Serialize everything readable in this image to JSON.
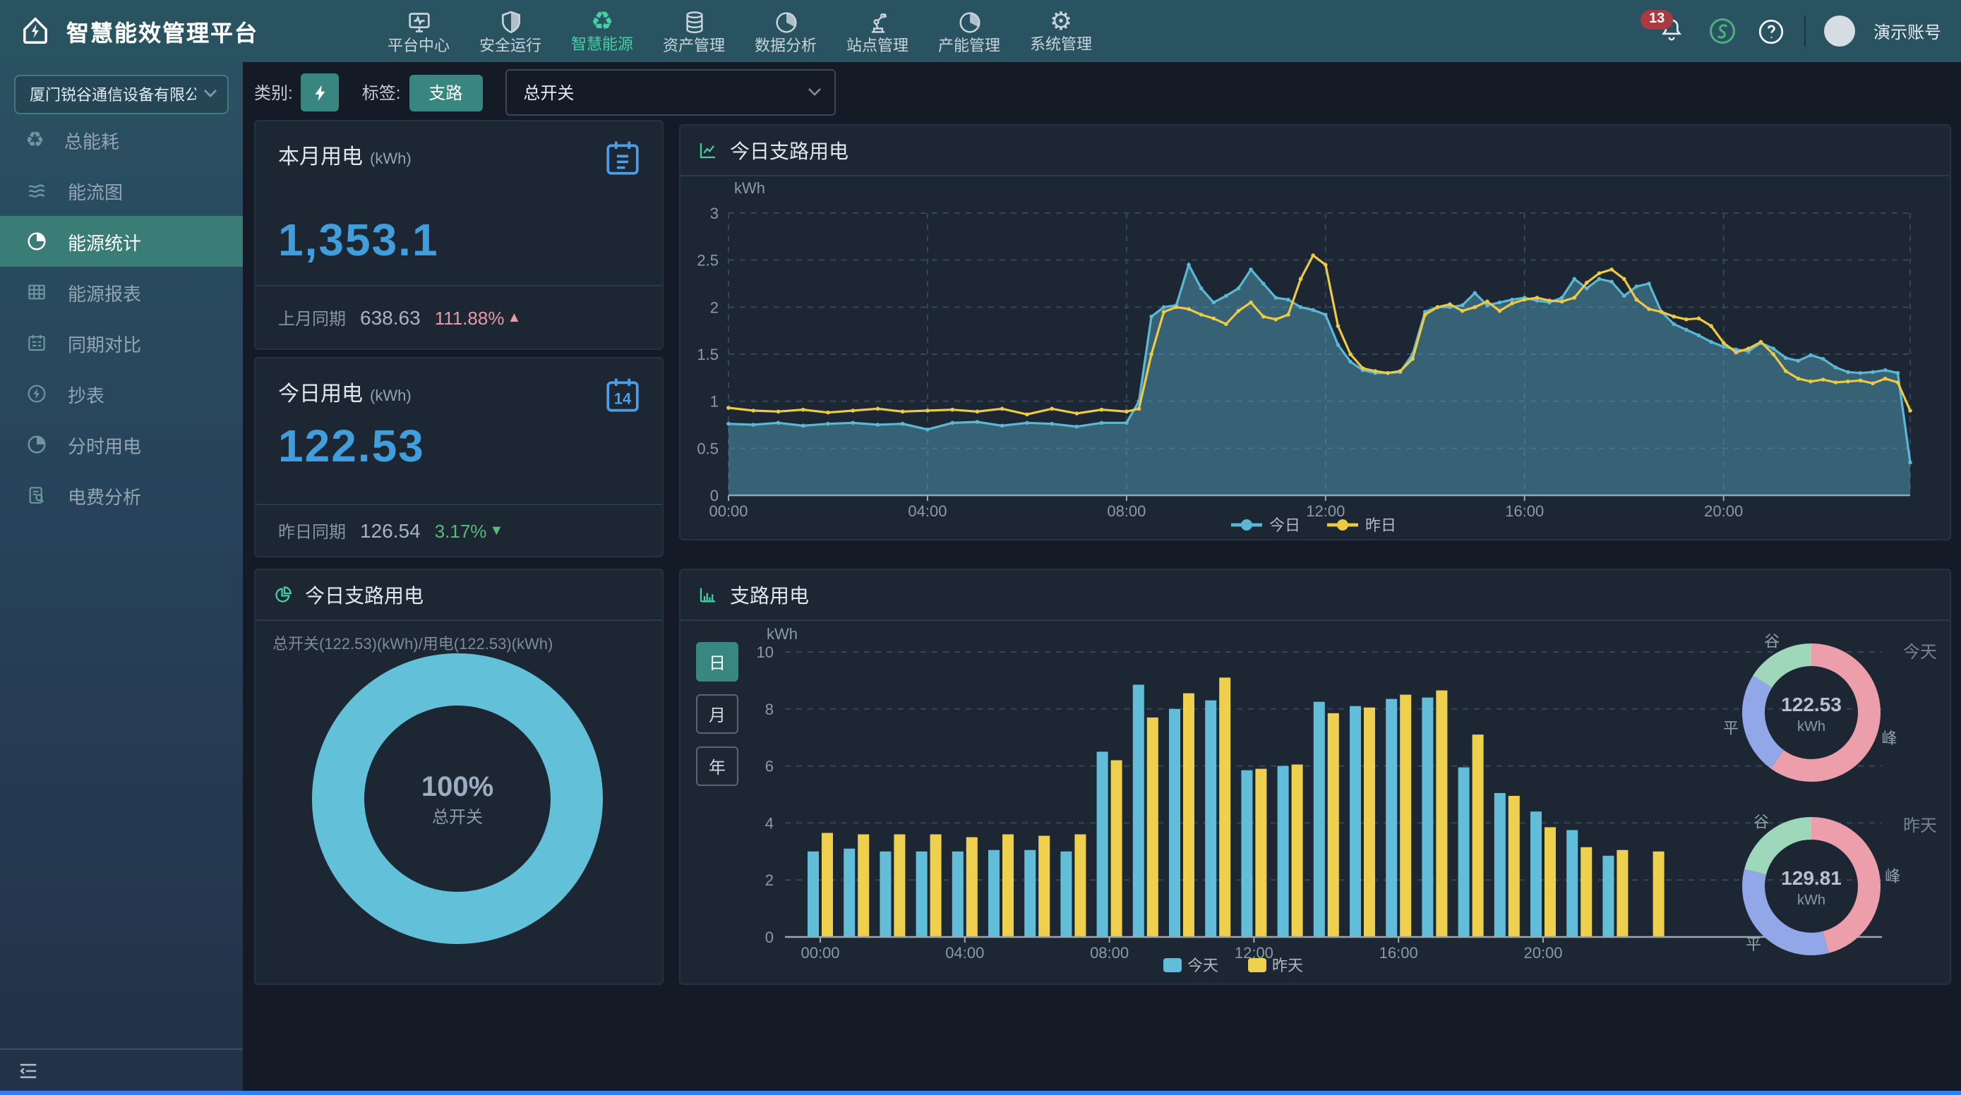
{
  "app": {
    "title": "智慧能效管理平台"
  },
  "topnav": {
    "items": [
      {
        "label": "平台中心",
        "icon": "monitor-icon",
        "active": false
      },
      {
        "label": "安全运行",
        "icon": "shield-icon",
        "active": false
      },
      {
        "label": "智慧能源",
        "icon": "recycle-icon",
        "active": true
      },
      {
        "label": "资产管理",
        "icon": "database-icon",
        "active": false
      },
      {
        "label": "数据分析",
        "icon": "pie-chart-icon",
        "active": false
      },
      {
        "label": "站点管理",
        "icon": "robot-arm-icon",
        "active": false
      },
      {
        "label": "产能管理",
        "icon": "pie-chart-icon",
        "active": false
      },
      {
        "label": "系统管理",
        "icon": "gear-icon",
        "active": false
      }
    ]
  },
  "topbar": {
    "notification_count": "13",
    "account_name": "演示账号"
  },
  "icons": {
    "gear_glyph": "⚙",
    "recycle_glyph": "♻",
    "trend_up": "▲",
    "trend_down": "▼"
  },
  "sidebar": {
    "company": "厦门锐谷通信设备有限公司",
    "items": [
      {
        "label": "总能耗",
        "icon": "recycle-icon",
        "active": false
      },
      {
        "label": "能流图",
        "icon": "flow-icon",
        "active": false
      },
      {
        "label": "能源统计",
        "icon": "pie-clock-icon",
        "active": true
      },
      {
        "label": "能源报表",
        "icon": "table-icon",
        "active": false
      },
      {
        "label": "同期对比",
        "icon": "calendar-icon",
        "active": false
      },
      {
        "label": "抄表",
        "icon": "bolt-circle-icon",
        "active": false
      },
      {
        "label": "分时用电",
        "icon": "pie-clock-icon",
        "active": false
      },
      {
        "label": "电费分析",
        "icon": "doc-search-icon",
        "active": false
      }
    ]
  },
  "filters": {
    "category_label": "类别:",
    "tag_label": "标签:",
    "tag_value": "支路",
    "switch_select": "总开关"
  },
  "stat_cards": {
    "month": {
      "title": "本月用电",
      "unit": "(kWh)",
      "value": "1,353.1",
      "compare_label": "上月同期",
      "compare_value": "638.63",
      "change_percent": "111.88%",
      "trend": "up"
    },
    "today": {
      "title": "今日用电",
      "unit": "(kWh)",
      "value": "122.53",
      "compare_label": "昨日同期",
      "compare_value": "126.54",
      "change_percent": "3.17%",
      "trend": "down",
      "calendar_day": "14"
    }
  },
  "panels": {
    "line": {
      "title": "今日支路用电"
    },
    "donut": {
      "title": "今日支路用电",
      "subtitle": "总开关(122.53)(kWh)/用电(122.53)(kWh)"
    },
    "bar": {
      "title": "支路用电",
      "range_buttons": [
        "日",
        "月",
        "年"
      ],
      "active_range": "日"
    }
  },
  "colors": {
    "accent": "#43d0a2",
    "today_line": "#5ab8d4",
    "yesterday_line": "#edc944",
    "bar_today": "#62bed8",
    "bar_yesterday": "#eed04e",
    "peak": "#ec9fab",
    "flat": "#92a7e8",
    "valley": "#9ed7ba",
    "donut": "#62c1d8",
    "value_blue": "#3f9edb"
  },
  "chart_data": [
    {
      "id": "today-branch-line",
      "type": "area-line",
      "title": "今日支路用电",
      "ylabel": "kWh",
      "ylim": [
        0,
        3
      ],
      "yticks": [
        0,
        0.5,
        1,
        1.5,
        2,
        2.5,
        3
      ],
      "xticks": [
        "00:00",
        "04:00",
        "08:00",
        "12:00",
        "16:00",
        "20:00"
      ],
      "xtick_hours": [
        0,
        4,
        8,
        12,
        16,
        20
      ],
      "hours_range": [
        0,
        23.75
      ],
      "grid": "dashed",
      "legend": [
        "今日",
        "昨日"
      ],
      "legend_position": "bottom",
      "hours": [
        0,
        0.5,
        1,
        1.5,
        2,
        2.5,
        3,
        3.5,
        4,
        4.5,
        5,
        5.5,
        6,
        6.5,
        7,
        7.5,
        8,
        8.25,
        8.5,
        8.75,
        9,
        9.25,
        9.5,
        9.75,
        10,
        10.25,
        10.5,
        10.75,
        11,
        11.25,
        11.5,
        11.75,
        12,
        12.25,
        12.5,
        12.75,
        13,
        13.25,
        13.5,
        13.75,
        14,
        14.25,
        14.5,
        14.75,
        15,
        15.25,
        15.5,
        15.75,
        16,
        16.25,
        16.5,
        16.75,
        17,
        17.25,
        17.5,
        17.75,
        18,
        18.25,
        18.5,
        18.75,
        19,
        19.25,
        19.5,
        19.75,
        20,
        20.25,
        20.5,
        20.75,
        21,
        21.25,
        21.5,
        21.75,
        22,
        22.25,
        22.5,
        22.75,
        23,
        23.25,
        23.5,
        23.75
      ],
      "series": [
        {
          "name": "今日",
          "color": "#5ab8d4",
          "area": true,
          "area_color": "rgba(93,178,205,0.42)",
          "values": [
            0.76,
            0.75,
            0.77,
            0.74,
            0.76,
            0.77,
            0.75,
            0.76,
            0.7,
            0.77,
            0.78,
            0.74,
            0.77,
            0.76,
            0.73,
            0.77,
            0.77,
            1.0,
            1.9,
            2.0,
            2.02,
            2.45,
            2.2,
            2.05,
            2.12,
            2.2,
            2.4,
            2.25,
            2.1,
            2.08,
            2.0,
            1.97,
            1.92,
            1.6,
            1.42,
            1.33,
            1.3,
            1.3,
            1.31,
            1.5,
            1.95,
            2.0,
            2.0,
            2.02,
            2.15,
            2.02,
            2.05,
            2.08,
            2.1,
            2.07,
            2.05,
            2.1,
            2.3,
            2.2,
            2.3,
            2.27,
            2.12,
            2.22,
            2.25,
            1.95,
            1.82,
            1.76,
            1.7,
            1.63,
            1.58,
            1.55,
            1.53,
            1.62,
            1.56,
            1.46,
            1.43,
            1.49,
            1.45,
            1.36,
            1.31,
            1.3,
            1.31,
            1.33,
            1.3,
            0.35
          ]
        },
        {
          "name": "昨日",
          "color": "#edc944",
          "area": false,
          "values": [
            0.93,
            0.9,
            0.89,
            0.91,
            0.88,
            0.9,
            0.92,
            0.89,
            0.9,
            0.91,
            0.89,
            0.92,
            0.86,
            0.92,
            0.87,
            0.91,
            0.89,
            0.92,
            1.5,
            1.95,
            2.0,
            1.98,
            1.92,
            1.88,
            1.82,
            1.96,
            2.05,
            1.9,
            1.87,
            1.92,
            2.3,
            2.55,
            2.45,
            1.8,
            1.5,
            1.35,
            1.32,
            1.3,
            1.32,
            1.45,
            1.92,
            2.0,
            2.03,
            1.96,
            2.0,
            2.06,
            1.96,
            2.04,
            2.08,
            2.1,
            2.07,
            2.06,
            2.1,
            2.26,
            2.36,
            2.4,
            2.3,
            2.08,
            1.98,
            1.95,
            1.9,
            1.87,
            1.88,
            1.8,
            1.62,
            1.52,
            1.56,
            1.63,
            1.5,
            1.32,
            1.24,
            1.21,
            1.23,
            1.2,
            1.21,
            1.22,
            1.19,
            1.24,
            1.2,
            0.9
          ]
        }
      ]
    },
    {
      "id": "total-switch-donut",
      "type": "donut",
      "title": "今日支路用电",
      "subtitle": "总开关(122.53)(kWh)/用电(122.53)(kWh)",
      "center_value": "100%",
      "center_label": "总开关",
      "color": "#62c1d8",
      "value_fraction": 1
    },
    {
      "id": "branch-bars",
      "type": "bar",
      "title": "支路用电",
      "ylabel": "kWh",
      "ylim": [
        0,
        10
      ],
      "yticks": [
        0,
        2,
        4,
        6,
        8,
        10
      ],
      "categories": [
        "00:00",
        "01:00",
        "02:00",
        "03:00",
        "04:00",
        "05:00",
        "06:00",
        "07:00",
        "08:00",
        "09:00",
        "10:00",
        "11:00",
        "12:00",
        "13:00",
        "14:00",
        "15:00",
        "16:00",
        "17:00",
        "18:00",
        "19:00",
        "20:00",
        "21:00",
        "22:00",
        "23:00"
      ],
      "xtick_labels": [
        "00:00",
        "04:00",
        "08:00",
        "12:00",
        "16:00",
        "20:00"
      ],
      "xtick_index": [
        0,
        4,
        8,
        12,
        16,
        20
      ],
      "grid": "dashed",
      "legend": [
        "今天",
        "昨天"
      ],
      "legend_position": "bottom",
      "series": [
        {
          "name": "今天",
          "color": "#62bed8",
          "values": [
            3.0,
            3.1,
            3.0,
            3.0,
            3.0,
            3.05,
            3.05,
            3.0,
            6.5,
            8.85,
            8.0,
            8.3,
            5.85,
            6.0,
            8.25,
            8.1,
            8.35,
            8.4,
            5.95,
            5.05,
            4.4,
            3.75,
            2.85,
            null
          ]
        },
        {
          "name": "昨天",
          "color": "#eed04e",
          "values": [
            3.65,
            3.6,
            3.6,
            3.6,
            3.5,
            3.6,
            3.55,
            3.6,
            6.2,
            7.7,
            8.55,
            9.1,
            5.9,
            6.05,
            7.85,
            8.05,
            8.5,
            8.65,
            7.1,
            4.95,
            3.85,
            3.15,
            3.05,
            3.0
          ]
        }
      ]
    },
    {
      "id": "today-peak-donut",
      "type": "ring-breakdown",
      "label": "今天",
      "center_value": "122.53",
      "center_unit": "kWh",
      "slices": [
        {
          "name": "峰",
          "color": "#ec9fab",
          "fraction": 0.6
        },
        {
          "name": "平",
          "color": "#92a7e8",
          "fraction": 0.24
        },
        {
          "name": "谷",
          "color": "#9ed7ba",
          "fraction": 0.16
        }
      ]
    },
    {
      "id": "yesterday-peak-donut",
      "type": "ring-breakdown",
      "label": "昨天",
      "center_value": "129.81",
      "center_unit": "kWh",
      "slices": [
        {
          "name": "峰",
          "color": "#ec9fab",
          "fraction": 0.46
        },
        {
          "name": "平",
          "color": "#92a7e8",
          "fraction": 0.33
        },
        {
          "name": "谷",
          "color": "#9ed7ba",
          "fraction": 0.21
        }
      ]
    }
  ]
}
